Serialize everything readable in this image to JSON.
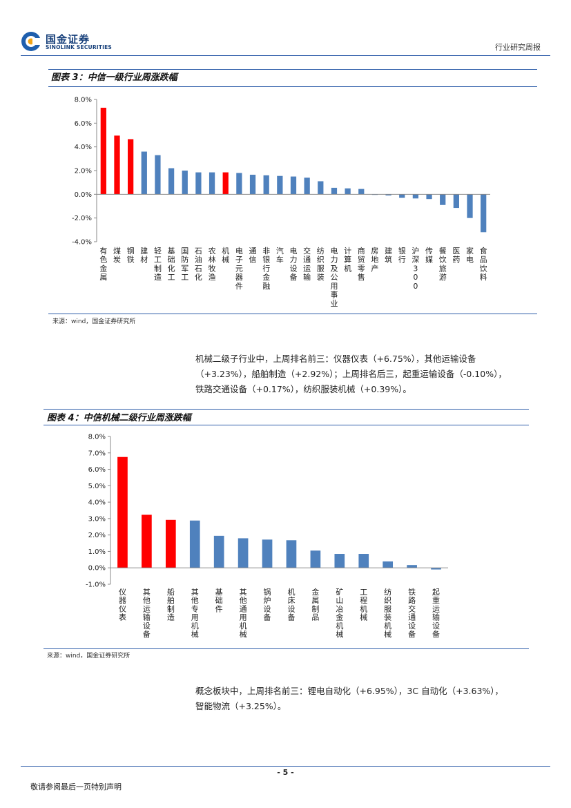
{
  "header": {
    "logo_cn": "国金证券",
    "logo_en": "SINOLINK SECURITIES",
    "report_type": "行业研究周报"
  },
  "figure3": {
    "title": "图表 3：中信一级行业周涨跌幅",
    "source": "来源：wind，国金证券研究所"
  },
  "paragraph1": {
    "lines": [
      "机械二级子行业中，上周排名前三：仪器仪表（+6.75%），其他运输设备",
      "（+3.23%），船舶制造（+2.92%）；上周排名后三，起重运输设备（-0.10%），",
      "铁路交通设备（+0.17%），纺织服装机械（+0.39%）。"
    ]
  },
  "figure4": {
    "title": "图表 4：中信机械二级行业周涨跌幅",
    "source": "来源：wind，国金证券研究所"
  },
  "paragraph2": {
    "lines": [
      "概念板块中，上周排名前三：锂电自动化（+6.95%），3C 自动化（+3.63%），",
      "智能物流（+3.25%）。"
    ]
  },
  "footer": {
    "page_number": "- 5 -",
    "note": "敬请参阅最后一页特别声明"
  },
  "colors": {
    "highlight": "#ff0000",
    "normal": "#4f81bd",
    "rule": "#2a5aa8"
  },
  "chart_data": [
    {
      "type": "bar",
      "title": "",
      "xlabel": "",
      "ylabel": "",
      "ylim": [
        -4.0,
        8.0
      ],
      "yticks": [
        "8.0%",
        "6.0%",
        "4.0%",
        "2.0%",
        "0.0%",
        "-2.0%",
        "-4.0%"
      ],
      "grid": false,
      "categories": [
        "有色金属",
        "煤炭",
        "钢铁",
        "建材",
        "轻工制造",
        "基础化工",
        "国防军工",
        "石油石化",
        "农林牧渔",
        "机械",
        "电子元器件",
        "通信",
        "非银行金融",
        "汽车",
        "电力设备",
        "交通运输",
        "纺织服装",
        "电力及公用事业",
        "计算机",
        "商贸零售",
        "房地产",
        "建筑",
        "银行",
        "沪深300",
        "传媒",
        "餐饮旅游",
        "医药",
        "家电",
        "食品饮料"
      ],
      "values": [
        7.3,
        4.95,
        4.65,
        3.6,
        3.3,
        2.2,
        2.0,
        1.85,
        1.85,
        1.85,
        1.8,
        1.65,
        1.6,
        1.55,
        1.5,
        1.4,
        1.1,
        0.55,
        0.5,
        0.45,
        -0.05,
        -0.1,
        -0.3,
        -0.35,
        -0.4,
        -0.9,
        -1.15,
        -2.0,
        -3.2
      ],
      "highlighted": [
        "煤炭",
        "钢铁",
        "有色金属",
        "机械"
      ]
    },
    {
      "type": "bar",
      "title": "",
      "xlabel": "",
      "ylabel": "",
      "ylim": [
        -1.0,
        8.0
      ],
      "yticks": [
        "8.0%",
        "7.0%",
        "6.0%",
        "5.0%",
        "4.0%",
        "3.0%",
        "2.0%",
        "1.0%",
        "0.0%",
        "-1.0%"
      ],
      "grid": false,
      "categories": [
        "仪器仪表",
        "其他运输设备",
        "船舶制造",
        "其他专用机械",
        "基础件",
        "其他通用机械",
        "锅炉设备",
        "机床设备",
        "金属制品",
        "矿山冶金机械",
        "工程机械",
        "纺织服装机械",
        "铁路交通设备",
        "起重运输设备"
      ],
      "values": [
        6.75,
        3.23,
        2.92,
        2.88,
        1.95,
        1.8,
        1.72,
        1.68,
        1.05,
        0.85,
        0.85,
        0.39,
        0.17,
        -0.1
      ],
      "highlighted": [
        "仪器仪表",
        "其他运输设备",
        "船舶制造"
      ]
    }
  ]
}
